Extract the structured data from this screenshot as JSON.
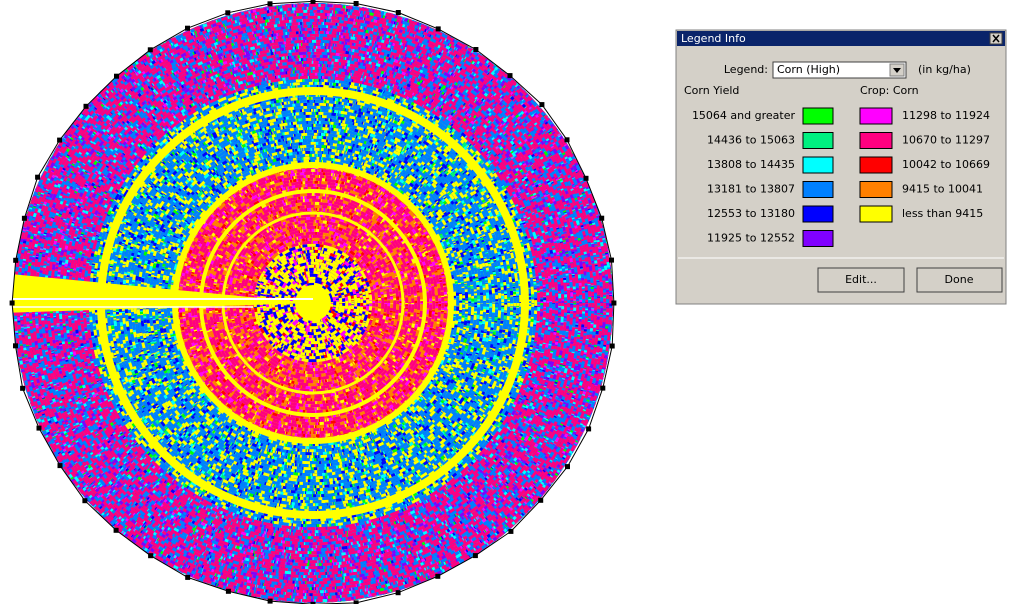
{
  "dialog": {
    "title": "Legend Info",
    "legend_label": "Legend:",
    "legend_value": "Corn (High)",
    "units": "(in kg/ha)",
    "left_heading": "Corn Yield",
    "right_heading": "Crop: Corn",
    "left_items": [
      {
        "label": "15064 and greater",
        "color": "#00ff00"
      },
      {
        "label": "14436 to 15063",
        "color": "#00f080"
      },
      {
        "label": "13808 to 14435",
        "color": "#00ffff"
      },
      {
        "label": "13181 to 13807",
        "color": "#0080ff"
      },
      {
        "label": "12553 to 13180",
        "color": "#0000ff"
      },
      {
        "label": "11925 to 12552",
        "color": "#8000ff"
      }
    ],
    "right_items": [
      {
        "label": "11298 to 11924",
        "color": "#ff00ff"
      },
      {
        "label": "10670 to 11297",
        "color": "#ff0080"
      },
      {
        "label": "10042 to 10669",
        "color": "#ff0000"
      },
      {
        "label": "9415 to 10041",
        "color": "#ff8000"
      },
      {
        "label": "less than 9415",
        "color": "#ffff00"
      }
    ],
    "buttons": [
      "Edit...",
      "Done"
    ]
  }
}
